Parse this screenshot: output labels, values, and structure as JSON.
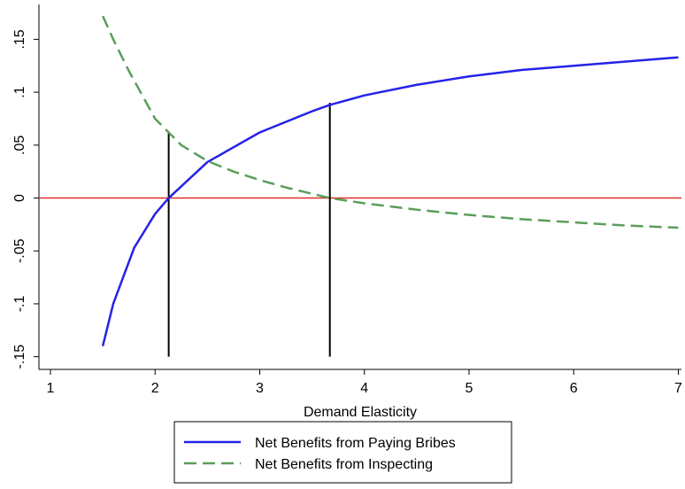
{
  "chart_data": {
    "type": "line",
    "xlabel": "Demand Elasticity",
    "xlim": [
      0.89,
      7.03
    ],
    "ylim": [
      -0.162,
      0.183
    ],
    "xticks": [
      1,
      2,
      3,
      4,
      5,
      6,
      7
    ],
    "yticks": [
      {
        "value": -0.15,
        "label": "-.15"
      },
      {
        "value": -0.1,
        "label": "-.1"
      },
      {
        "value": -0.05,
        "label": "-.05"
      },
      0,
      {
        "value": 0.05,
        "label": ".05"
      },
      {
        "value": 0.1,
        "label": ".1"
      },
      {
        "value": 0.15,
        "label": ".15"
      }
    ],
    "series": [
      {
        "name": "Net Benefits from Paying Bribes",
        "color": "#2323e8",
        "dash": false,
        "x": [
          1.5,
          1.6,
          1.8,
          2.0,
          2.13,
          2.5,
          3.0,
          3.5,
          3.67,
          4.0,
          4.5,
          5.0,
          5.5,
          6.0,
          6.5,
          7.0
        ],
        "values": [
          -0.14,
          -0.1,
          -0.047,
          -0.015,
          0,
          0.034,
          0.062,
          0.082,
          0.088,
          0.097,
          0.107,
          0.115,
          0.121,
          0.125,
          0.129,
          0.133
        ]
      },
      {
        "name": "Net Benefits from Inspecting",
        "color": "#5a9e5a",
        "dash": true,
        "x": [
          1.5,
          1.6,
          1.75,
          2.0,
          2.13,
          2.25,
          2.5,
          2.75,
          3.0,
          3.25,
          3.5,
          3.67,
          4.0,
          4.5,
          5.0,
          5.5,
          6.0,
          6.5,
          7.0
        ],
        "values": [
          0.172,
          0.15,
          0.12,
          0.075,
          0.062,
          0.05,
          0.035,
          0.025,
          0.017,
          0.01,
          0.004,
          0,
          -0.005,
          -0.011,
          -0.016,
          -0.02,
          -0.023,
          -0.026,
          -0.028
        ]
      }
    ],
    "hline": {
      "value": 0,
      "color": "#e0302a"
    },
    "vlines": [
      {
        "x": 2.13,
        "y0": -0.15,
        "y1": 0.062
      },
      {
        "x": 3.67,
        "y0": -0.15,
        "y1": 0.09
      }
    ]
  }
}
